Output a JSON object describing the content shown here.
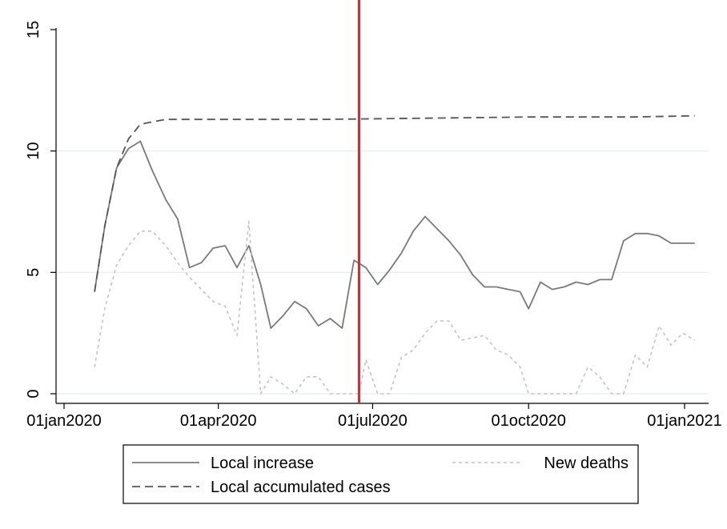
{
  "chart_data": {
    "type": "line",
    "title": "",
    "xlabel": "",
    "ylabel": "",
    "ylim": [
      0,
      15
    ],
    "xlim": [
      "2020-01-01",
      "2021-01-01"
    ],
    "y_ticks": [
      0,
      5,
      10,
      15
    ],
    "x_ticks": [
      {
        "date": "2020-01-01",
        "label": "01jan2020"
      },
      {
        "date": "2020-04-01",
        "label": "01apr2020"
      },
      {
        "date": "2020-07-01",
        "label": "01jul2020"
      },
      {
        "date": "2020-10-01",
        "label": "01oct2020"
      },
      {
        "date": "2021-01-01",
        "label": "01jan2021"
      }
    ],
    "grid": true,
    "legend_position": "bottom",
    "vertical_marker": {
      "date": "2020-06-23",
      "color": "#e8202a"
    },
    "series": [
      {
        "name": "Local increase",
        "style": "solid",
        "color": "#7a7a7a",
        "points": [
          [
            "2020-01-19",
            4.2
          ],
          [
            "2020-01-25",
            6.9
          ],
          [
            "2020-02-01",
            9.3
          ],
          [
            "2020-02-08",
            10.1
          ],
          [
            "2020-02-15",
            10.4
          ],
          [
            "2020-02-22",
            9.2
          ],
          [
            "2020-03-01",
            8.0
          ],
          [
            "2020-03-08",
            7.2
          ],
          [
            "2020-03-15",
            5.2
          ],
          [
            "2020-03-22",
            5.4
          ],
          [
            "2020-03-29",
            6.0
          ],
          [
            "2020-04-05",
            6.1
          ],
          [
            "2020-04-12",
            5.2
          ],
          [
            "2020-04-19",
            6.1
          ],
          [
            "2020-04-26",
            4.5
          ],
          [
            "2020-05-02",
            2.7
          ],
          [
            "2020-05-09",
            3.2
          ],
          [
            "2020-05-16",
            3.8
          ],
          [
            "2020-05-23",
            3.5
          ],
          [
            "2020-05-30",
            2.8
          ],
          [
            "2020-06-06",
            3.1
          ],
          [
            "2020-06-13",
            2.7
          ],
          [
            "2020-06-20",
            5.5
          ],
          [
            "2020-06-27",
            5.2
          ],
          [
            "2020-07-04",
            4.5
          ],
          [
            "2020-07-11",
            5.1
          ],
          [
            "2020-07-18",
            5.8
          ],
          [
            "2020-07-25",
            6.7
          ],
          [
            "2020-08-01",
            7.3
          ],
          [
            "2020-08-08",
            6.8
          ],
          [
            "2020-08-15",
            6.3
          ],
          [
            "2020-08-22",
            5.7
          ],
          [
            "2020-08-29",
            4.9
          ],
          [
            "2020-09-05",
            4.4
          ],
          [
            "2020-09-12",
            4.4
          ],
          [
            "2020-09-19",
            4.3
          ],
          [
            "2020-09-26",
            4.2
          ],
          [
            "2020-10-01",
            3.5
          ],
          [
            "2020-10-08",
            4.6
          ],
          [
            "2020-10-15",
            4.3
          ],
          [
            "2020-10-22",
            4.4
          ],
          [
            "2020-10-29",
            4.6
          ],
          [
            "2020-11-05",
            4.5
          ],
          [
            "2020-11-12",
            4.7
          ],
          [
            "2020-11-19",
            4.7
          ],
          [
            "2020-11-26",
            6.3
          ],
          [
            "2020-12-03",
            6.6
          ],
          [
            "2020-12-10",
            6.6
          ],
          [
            "2020-12-17",
            6.5
          ],
          [
            "2020-12-24",
            6.2
          ],
          [
            "2020-12-31",
            6.2
          ],
          [
            "2021-01-07",
            6.2
          ]
        ]
      },
      {
        "name": "Local accumulated cases",
        "style": "dashed",
        "color": "#555555",
        "points": [
          [
            "2020-01-19",
            4.2
          ],
          [
            "2020-01-25",
            6.9
          ],
          [
            "2020-02-01",
            9.3
          ],
          [
            "2020-02-08",
            10.5
          ],
          [
            "2020-02-15",
            11.1
          ],
          [
            "2020-02-22",
            11.2
          ],
          [
            "2020-03-01",
            11.3
          ],
          [
            "2020-04-01",
            11.3
          ],
          [
            "2020-06-01",
            11.3
          ],
          [
            "2020-08-01",
            11.35
          ],
          [
            "2020-10-01",
            11.4
          ],
          [
            "2020-12-01",
            11.4
          ],
          [
            "2021-01-07",
            11.45
          ]
        ]
      },
      {
        "name": "New deaths",
        "style": "dotted",
        "color": "#c4c4c4",
        "points": [
          [
            "2020-01-19",
            1.1
          ],
          [
            "2020-01-25",
            3.5
          ],
          [
            "2020-02-01",
            5.3
          ],
          [
            "2020-02-08",
            6.1
          ],
          [
            "2020-02-15",
            6.7
          ],
          [
            "2020-02-22",
            6.7
          ],
          [
            "2020-03-01",
            6.1
          ],
          [
            "2020-03-08",
            5.4
          ],
          [
            "2020-03-15",
            4.8
          ],
          [
            "2020-03-22",
            4.3
          ],
          [
            "2020-03-29",
            3.8
          ],
          [
            "2020-04-05",
            3.6
          ],
          [
            "2020-04-12",
            2.4
          ],
          [
            "2020-04-19",
            7.1
          ],
          [
            "2020-04-26",
            0.0
          ],
          [
            "2020-05-02",
            0.7
          ],
          [
            "2020-05-09",
            0.4
          ],
          [
            "2020-05-16",
            0.0
          ],
          [
            "2020-05-23",
            0.7
          ],
          [
            "2020-05-30",
            0.7
          ],
          [
            "2020-06-06",
            0.0
          ],
          [
            "2020-06-13",
            0.0
          ],
          [
            "2020-06-20",
            0.0
          ],
          [
            "2020-06-23",
            0.0
          ],
          [
            "2020-06-27",
            1.4
          ],
          [
            "2020-07-04",
            0.0
          ],
          [
            "2020-07-11",
            0.0
          ],
          [
            "2020-07-18",
            1.5
          ],
          [
            "2020-07-25",
            1.8
          ],
          [
            "2020-08-01",
            2.5
          ],
          [
            "2020-08-08",
            3.0
          ],
          [
            "2020-08-15",
            3.0
          ],
          [
            "2020-08-22",
            2.2
          ],
          [
            "2020-08-29",
            2.3
          ],
          [
            "2020-09-05",
            2.4
          ],
          [
            "2020-09-12",
            1.8
          ],
          [
            "2020-09-19",
            1.6
          ],
          [
            "2020-09-26",
            1.1
          ],
          [
            "2020-10-01",
            0.0
          ],
          [
            "2020-10-08",
            0.0
          ],
          [
            "2020-10-15",
            0.0
          ],
          [
            "2020-10-22",
            0.0
          ],
          [
            "2020-10-29",
            0.0
          ],
          [
            "2020-11-05",
            1.1
          ],
          [
            "2020-11-12",
            0.7
          ],
          [
            "2020-11-19",
            0.0
          ],
          [
            "2020-11-26",
            0.0
          ],
          [
            "2020-12-03",
            1.6
          ],
          [
            "2020-12-10",
            1.1
          ],
          [
            "2020-12-17",
            2.8
          ],
          [
            "2020-12-24",
            2.0
          ],
          [
            "2020-12-31",
            2.5
          ],
          [
            "2021-01-07",
            2.2
          ]
        ]
      }
    ]
  }
}
